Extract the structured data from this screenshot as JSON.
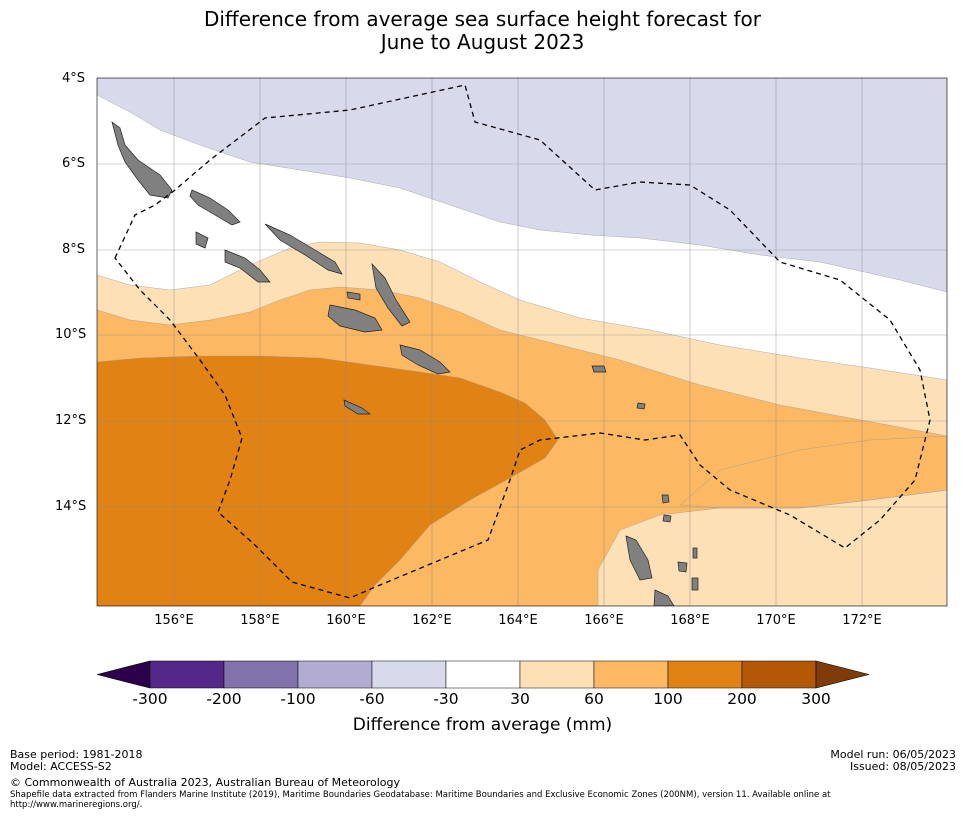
{
  "title_line1": "Difference from average sea surface height forecast for",
  "title_line2": "June to August 2023",
  "map": {
    "lat_labels": [
      "4°S",
      "6°S",
      "8°S",
      "10°S",
      "12°S",
      "14°S"
    ],
    "lon_labels": [
      "156°E",
      "158°E",
      "160°E",
      "162°E",
      "164°E",
      "166°E",
      "168°E",
      "170°E",
      "172°E"
    ]
  },
  "colorbar": {
    "title": "Difference from average (mm)",
    "labels": [
      "-300",
      "-200",
      "-100",
      "-60",
      "-30",
      "30",
      "60",
      "100",
      "200",
      "300"
    ],
    "colors": {
      "lt-300": "#2d004b",
      "c1": "#542788",
      "c2": "#8073ac",
      "c3": "#b2abd2",
      "c4": "#d8daeb",
      "c5": "#ffffff",
      "c6": "#fee0b6",
      "c7": "#fdb863",
      "c8": "#e08214",
      "c9": "#b35806",
      "gt300": "#7f3b08"
    }
  },
  "footer": {
    "base_period": "Base period: 1981-2018",
    "model": "Model: ACCESS-S2",
    "model_run": "Model run: 06/05/2023",
    "issued": "Issued: 08/05/2023",
    "copyright": "© Commonwealth of Australia 2023, Australian Bureau of Meteorology",
    "shapefile_line1": "Shapefile data extracted from Flanders Marine Institute (2019), Maritime Boundaries Geodatabase: Maritime Boundaries and Exclusive Economic Zones (200NM), version 11. Available online at",
    "shapefile_line2": "http://www.marineregions.org/."
  }
}
